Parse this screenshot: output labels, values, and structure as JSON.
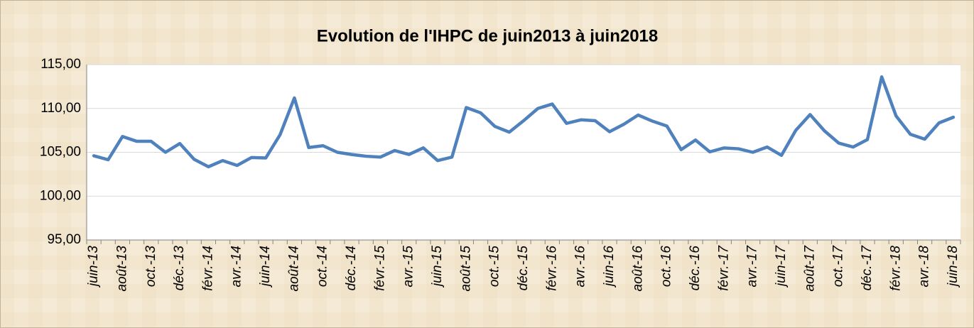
{
  "chart_data": {
    "type": "line",
    "title": "Evolution de l'IHPC de juin2013 à juin2018",
    "categories": [
      "juin-13",
      null,
      "août-13",
      null,
      "oct.-13",
      null,
      "déc.-13",
      null,
      "févr.-14",
      null,
      "avr.-14",
      null,
      "juin-14",
      null,
      "août-14",
      null,
      "oct.-14",
      null,
      "déc.-14",
      null,
      "févr.-15",
      null,
      "avr.-15",
      null,
      "juin-15",
      null,
      "août-15",
      null,
      "oct.-15",
      null,
      "déc.-15",
      null,
      "févr.-16",
      null,
      "avr.-16",
      null,
      "juin-16",
      null,
      "août-16",
      null,
      "oct.-16",
      null,
      "déc.-16",
      null,
      "févr.-17",
      null,
      "avr.-17",
      null,
      "juin-17",
      null,
      "août-17",
      null,
      "oct.-17",
      null,
      "déc.-17",
      null,
      "févr.-18",
      null,
      "avr.-18",
      null,
      "juin-18"
    ],
    "values": [
      104.6,
      104.15,
      106.8,
      106.25,
      106.25,
      105.0,
      106.0,
      104.2,
      103.35,
      104.05,
      103.5,
      104.4,
      104.35,
      107.0,
      111.2,
      105.55,
      105.75,
      105.0,
      104.75,
      104.55,
      104.45,
      105.2,
      104.75,
      105.5,
      104.05,
      104.45,
      110.1,
      109.5,
      107.95,
      107.3,
      108.6,
      110.0,
      110.5,
      108.3,
      108.7,
      108.6,
      107.35,
      108.2,
      109.25,
      108.55,
      108.0,
      105.3,
      106.4,
      105.05,
      105.5,
      105.4,
      105.0,
      105.6,
      104.65,
      107.5,
      109.3,
      107.45,
      106.05,
      105.6,
      106.45,
      113.6,
      109.15,
      107.05,
      106.5,
      108.35,
      109.0
    ],
    "color": "#4f81bd",
    "ylim": [
      95,
      115
    ],
    "yticks": [
      {
        "value": 95,
        "label": "95,00"
      },
      {
        "value": 100,
        "label": "100,00"
      },
      {
        "value": 105,
        "label": "105,00"
      },
      {
        "value": 110,
        "label": "110,00"
      },
      {
        "value": 115,
        "label": "115,00"
      }
    ],
    "grid": true
  }
}
